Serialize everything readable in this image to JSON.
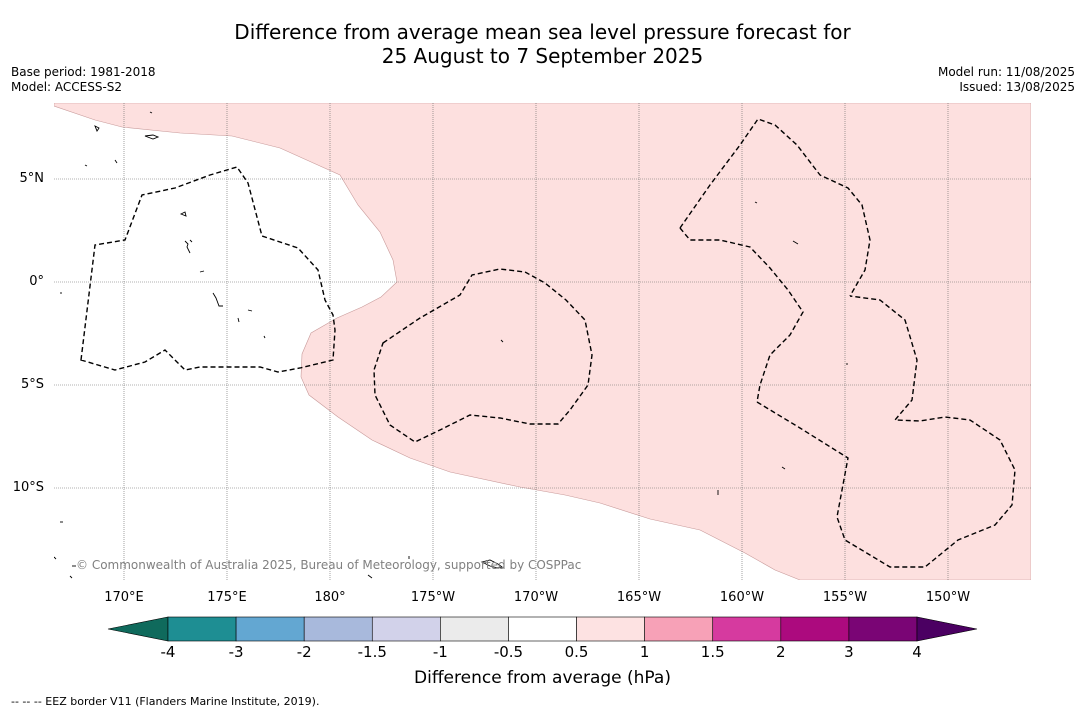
{
  "title_line1": "Difference from average mean sea level pressure forecast for",
  "title_line2": "25 August to 7 September 2025",
  "base_period": "Base period: 1981-2018",
  "model": "Model: ACCESS-S2",
  "model_run": "Model run: 11/08/2025",
  "issued": "Issued: 13/08/2025",
  "lat_labels": [
    "5°N",
    "0°",
    "5°S",
    "10°S"
  ],
  "lon_labels": [
    "170°E",
    "175°E",
    "180°",
    "175°W",
    "170°W",
    "165°W",
    "160°W",
    "155°W",
    "150°W"
  ],
  "copyright": "© Commonwealth of Australia 2025, Bureau of Meteorology, supported by COSPPac",
  "colorbar": {
    "label": "Difference from average (hPa)",
    "ticks": [
      "-4",
      "-3",
      "-2",
      "-1.5",
      "-1",
      "-0.5",
      "0.5",
      "1",
      "1.5",
      "2",
      "3",
      "4"
    ],
    "colors": [
      "#1e8e93",
      "#63a7d2",
      "#a8b9dc",
      "#d2d2ea",
      "#ebebeb",
      "#ffffff",
      "#fde2e2",
      "#f7a1b7",
      "#d63a9f",
      "#ac0a7e",
      "#7a0575"
    ],
    "low_extend_color": "#0f6a5c",
    "high_extend_color": "#4b0062"
  },
  "legend_note": "-- -- -- EEZ border V11 (Flanders Marine Institute, 2019).",
  "map": {
    "positive_anomaly_color": "#fde0df"
  }
}
